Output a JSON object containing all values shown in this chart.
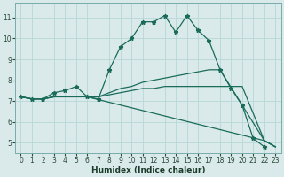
{
  "bg_color": "#daeaea",
  "grid_color": "#b8d8d8",
  "line_color": "#1a6b5a",
  "xlabel": "Humidex (Indice chaleur)",
  "xlim": [
    -0.5,
    23.5
  ],
  "ylim": [
    4.5,
    11.7
  ],
  "xticks": [
    0,
    1,
    2,
    3,
    4,
    5,
    6,
    7,
    8,
    9,
    10,
    11,
    12,
    13,
    14,
    15,
    16,
    17,
    18,
    19,
    20,
    21,
    22,
    23
  ],
  "yticks": [
    5,
    6,
    7,
    8,
    9,
    10,
    11
  ],
  "series": [
    {
      "x": [
        0,
        1,
        2,
        3,
        4,
        5,
        6,
        7,
        8,
        9,
        10,
        11,
        12,
        13,
        14,
        15,
        16,
        17,
        18,
        19,
        20,
        21,
        22
      ],
      "y": [
        7.2,
        7.1,
        7.1,
        7.4,
        7.5,
        7.7,
        7.2,
        7.1,
        8.5,
        9.6,
        10.0,
        10.8,
        10.8,
        11.1,
        10.3,
        11.1,
        10.4,
        9.9,
        8.5,
        7.6,
        6.8,
        5.2,
        4.8
      ],
      "marker": true
    },
    {
      "x": [
        0,
        1,
        2,
        3,
        4,
        5,
        6,
        22,
        23
      ],
      "y": [
        7.2,
        7.1,
        7.1,
        7.2,
        7.2,
        7.2,
        7.2,
        5.1,
        4.8
      ],
      "marker": false
    },
    {
      "x": [
        0,
        1,
        2,
        3,
        4,
        5,
        6,
        7,
        8,
        9,
        10,
        11,
        12,
        13,
        14,
        15,
        16,
        17,
        18,
        22,
        23
      ],
      "y": [
        7.2,
        7.1,
        7.1,
        7.2,
        7.2,
        7.2,
        7.2,
        7.2,
        7.4,
        7.6,
        7.7,
        7.9,
        8.0,
        8.1,
        8.2,
        8.3,
        8.4,
        8.5,
        8.5,
        5.1,
        4.8
      ],
      "marker": false
    },
    {
      "x": [
        0,
        1,
        2,
        3,
        4,
        5,
        6,
        7,
        8,
        9,
        10,
        11,
        12,
        13,
        14,
        15,
        16,
        17,
        18,
        19,
        20,
        22,
        23
      ],
      "y": [
        7.2,
        7.1,
        7.1,
        7.2,
        7.2,
        7.2,
        7.2,
        7.2,
        7.3,
        7.4,
        7.5,
        7.6,
        7.6,
        7.7,
        7.7,
        7.7,
        7.7,
        7.7,
        7.7,
        7.7,
        7.7,
        5.1,
        4.8
      ],
      "marker": false
    }
  ]
}
